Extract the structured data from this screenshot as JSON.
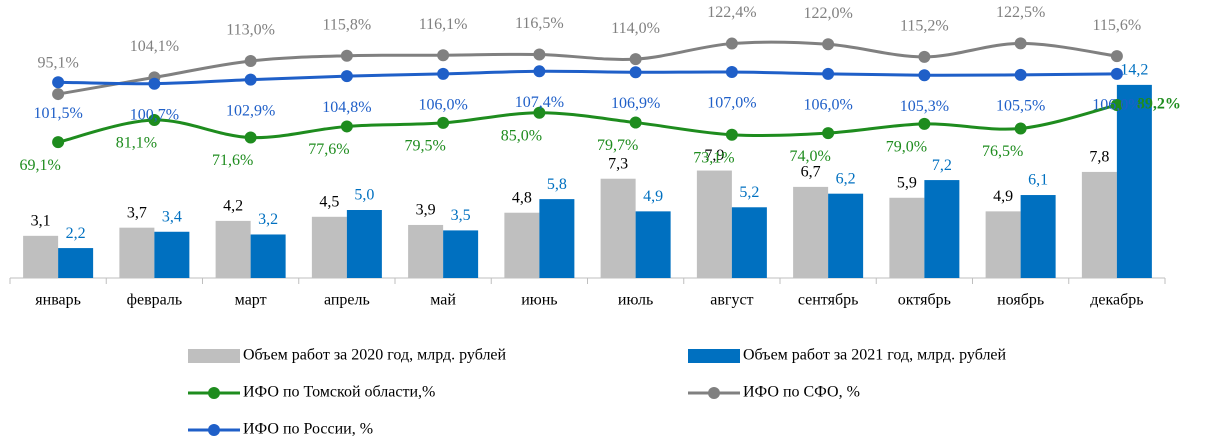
{
  "chart_data": {
    "type": "bar",
    "categories": [
      "январь",
      "февраль",
      "март",
      "апрель",
      "май",
      "июнь",
      "июль",
      "август",
      "сентябрь",
      "октябрь",
      "ноябрь",
      "декабрь"
    ],
    "series": [
      {
        "name": "Объем работ за 2020 год, млрд. рублей",
        "type": "bar",
        "color": "#bfbfbf",
        "values": [
          3.1,
          3.7,
          4.2,
          4.5,
          3.9,
          4.8,
          7.3,
          7.9,
          6.7,
          5.9,
          4.9,
          7.8
        ],
        "value_labels": [
          "3,1",
          "3,7",
          "4,2",
          "4,5",
          "3,9",
          "4,8",
          "7,3",
          "7,9",
          "6,7",
          "5,9",
          "4,9",
          "7,8"
        ]
      },
      {
        "name": "Объем работ за 2021 год, млрд. рублей",
        "type": "bar",
        "color": "#0070c0",
        "values": [
          2.2,
          3.4,
          3.2,
          5.0,
          3.5,
          5.8,
          4.9,
          5.2,
          6.2,
          7.2,
          6.1,
          14.2
        ],
        "value_labels": [
          "2,2",
          "3,4",
          "3,2",
          "5,0",
          "3,5",
          "5,8",
          "4,9",
          "5,2",
          "6,2",
          "7,2",
          "6,1",
          "14,2"
        ]
      },
      {
        "name": "ИФО по Томской области,%",
        "type": "line",
        "color": "#1e8c1e",
        "values": [
          69.1,
          81.1,
          71.6,
          77.6,
          79.5,
          85.0,
          79.7,
          73.1,
          74.0,
          79.0,
          76.5,
          89.2
        ],
        "value_labels": [
          "69,1%",
          "81,1%",
          "71,6%",
          "77,6%",
          "79,5%",
          "85,0%",
          "79,7%",
          "73,1%",
          "74,0%",
          "79,0%",
          "76,5%",
          "89,2%"
        ]
      },
      {
        "name": "ИФО по СФО, %",
        "type": "line",
        "color": "#808080",
        "values": [
          95.1,
          104.1,
          113.0,
          115.8,
          116.1,
          116.5,
          114.0,
          122.4,
          122.0,
          115.2,
          122.5,
          115.6
        ],
        "value_labels": [
          "95,1%",
          "104,1%",
          "113,0%",
          "115,8%",
          "116,1%",
          "116,5%",
          "114,0%",
          "122,4%",
          "122,0%",
          "115,2%",
          "122,5%",
          "115,6%"
        ]
      },
      {
        "name": "ИФО по России, %",
        "type": "line",
        "color": "#1f5fc8",
        "values": [
          101.5,
          100.7,
          102.9,
          104.8,
          106.0,
          107.4,
          106.9,
          107.0,
          106.0,
          105.3,
          105.5,
          106.0
        ],
        "value_labels": [
          "101,5%",
          "100,7%",
          "102,9%",
          "104,8%",
          "106,0%",
          "107,4%",
          "106,9%",
          "107,0%",
          "106,0%",
          "105,3%",
          "105,5%",
          "106,0%"
        ]
      }
    ]
  }
}
